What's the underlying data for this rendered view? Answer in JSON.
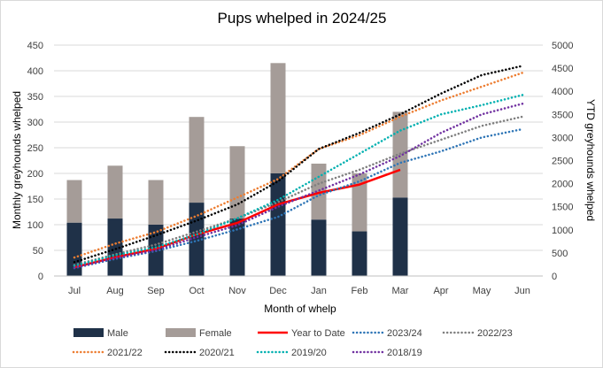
{
  "chart_data": {
    "type": "bar",
    "title": "Pups whelped in 2024/25",
    "xlabel": "Month of whelp",
    "ylabel": "Monthly greyhounds whelped",
    "y2label": "YTD greyhounds whelped",
    "categories": [
      "Jul",
      "Aug",
      "Sep",
      "Oct",
      "Nov",
      "Dec",
      "Jan",
      "Feb",
      "Mar",
      "Apr",
      "May",
      "Jun"
    ],
    "ylim": [
      0,
      450
    ],
    "yticks": [
      "0",
      "50",
      "100",
      "150",
      "200",
      "250",
      "300",
      "350",
      "400",
      "450"
    ],
    "y2lim": [
      0,
      5000
    ],
    "y2ticks": [
      "0",
      "500",
      "1000",
      "1500",
      "2000",
      "2500",
      "3000",
      "3500",
      "4000",
      "4500",
      "5000"
    ],
    "stacked_bars": [
      {
        "name": "Male",
        "color": "#1f3148",
        "values": [
          104,
          112,
          100,
          143,
          112,
          200,
          110,
          87,
          153
        ]
      },
      {
        "name": "Female",
        "color": "#a59c98",
        "values": [
          83,
          103,
          87,
          167,
          141,
          215,
          109,
          113,
          167
        ]
      }
    ],
    "lines": [
      {
        "name": "Year to Date",
        "color": "#ff0000",
        "style": "solid",
        "values": [
          190,
          405,
          590,
          900,
          1150,
          1550,
          1800,
          1980,
          2300
        ]
      },
      {
        "name": "2023/24",
        "color": "#2e75b6",
        "style": "dotted",
        "values": [
          170,
          370,
          540,
          760,
          1010,
          1280,
          1750,
          2050,
          2450,
          2700,
          3000,
          3180
        ]
      },
      {
        "name": "2022/23",
        "color": "#7f7f7f",
        "style": "dotted",
        "values": [
          240,
          470,
          680,
          960,
          1250,
          1600,
          2000,
          2300,
          2650,
          2950,
          3250,
          3450
        ]
      },
      {
        "name": "2021/22",
        "color": "#ed7d31",
        "style": "dotted",
        "values": [
          400,
          700,
          950,
          1300,
          1700,
          2100,
          2750,
          3050,
          3450,
          3800,
          4100,
          4400
        ]
      },
      {
        "name": "2020/21",
        "color": "#000000",
        "style": "dotted",
        "values": [
          300,
          580,
          880,
          1200,
          1550,
          2050,
          2750,
          3100,
          3500,
          3950,
          4350,
          4550
        ]
      },
      {
        "name": "2019/20",
        "color": "#00b0b0",
        "style": "dotted",
        "values": [
          220,
          450,
          620,
          900,
          1250,
          1650,
          2150,
          2650,
          3150,
          3500,
          3700,
          3920
        ]
      },
      {
        "name": "2018/19",
        "color": "#7030a0",
        "style": "dotted",
        "values": [
          180,
          390,
          560,
          840,
          1100,
          1500,
          1850,
          2200,
          2600,
          3100,
          3500,
          3730
        ]
      }
    ],
    "legend": [
      {
        "label": "Male",
        "kind": "box",
        "color": "#1f3148"
      },
      {
        "label": "Female",
        "kind": "box",
        "color": "#a59c98"
      },
      {
        "label": "Year to Date",
        "kind": "solid",
        "color": "#ff0000"
      },
      {
        "label": "2023/24",
        "kind": "dotted",
        "color": "#2e75b6"
      },
      {
        "label": "2022/23",
        "kind": "dotted",
        "color": "#7f7f7f"
      },
      {
        "label": "2021/22",
        "kind": "dotted",
        "color": "#ed7d31"
      },
      {
        "label": "2020/21",
        "kind": "dotted",
        "color": "#000000"
      },
      {
        "label": "2019/20",
        "kind": "dotted",
        "color": "#00b0b0"
      },
      {
        "label": "2018/19",
        "kind": "dotted",
        "color": "#7030a0"
      }
    ],
    "legend_position": "bottom",
    "grid": true
  }
}
